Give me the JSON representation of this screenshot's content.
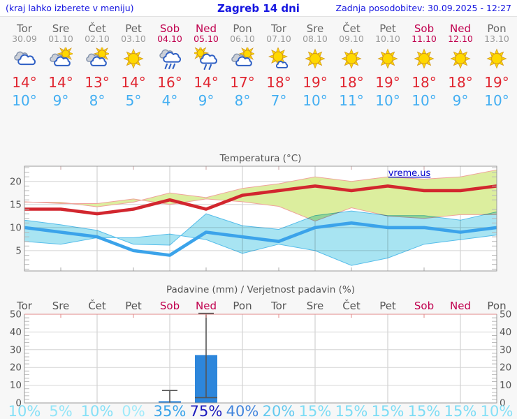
{
  "header": {
    "hint": "(kraj lahko izberete v meniju)",
    "title": "Zagreb 14 dni",
    "updated": "Zadnja posodobitev: 30.09.2025 - 12:27"
  },
  "colors": {
    "weekday": "#666666",
    "date": "#9a9a9a",
    "weekend": "#c0004e",
    "high": "#e02530",
    "low": "#42aef2",
    "bar": "#2d86db",
    "whisker": "#555555",
    "max_line": "#d2262e",
    "min_line": "#3ba3ea",
    "max_band_fill": "#dcee9e",
    "max_band_edge": "#efa39b",
    "min_band_fill": "#a8e4f2",
    "min_band_edge": "#56bdea",
    "link": "#0000cc"
  },
  "days": [
    {
      "name": "Tor",
      "date": "30.09",
      "weekend": false,
      "icon": "cloudy-icon",
      "high": "14°",
      "low": "10°",
      "prob": "10%",
      "prob_color": "#85e0f7"
    },
    {
      "name": "Sre",
      "date": "01.10",
      "weekend": false,
      "icon": "partly-cloudy-icon",
      "high": "14°",
      "low": "9°",
      "prob": "5%",
      "prob_color": "#92e5f8"
    },
    {
      "name": "Čet",
      "date": "02.10",
      "weekend": false,
      "icon": "partly-cloudy-icon",
      "high": "13°",
      "low": "8°",
      "prob": "10%",
      "prob_color": "#85e0f7"
    },
    {
      "name": "Pet",
      "date": "03.10",
      "weekend": false,
      "icon": "sunny-icon",
      "high": "14°",
      "low": "5°",
      "prob": "0%",
      "prob_color": "#9feafa"
    },
    {
      "name": "Sob",
      "date": "04.10",
      "weekend": true,
      "icon": "rain-icon",
      "high": "16°",
      "low": "4°",
      "prob": "35%",
      "prob_color": "#37a2e9"
    },
    {
      "name": "Ned",
      "date": "05.10",
      "weekend": true,
      "icon": "sun-rain-icon",
      "high": "14°",
      "low": "9°",
      "prob": "75%",
      "prob_color": "#1b1bbd"
    },
    {
      "name": "Pon",
      "date": "06.10",
      "weekend": false,
      "icon": "partly-cloudy-icon",
      "high": "17°",
      "low": "8°",
      "prob": "40%",
      "prob_color": "#4285dd"
    },
    {
      "name": "Tor",
      "date": "07.10",
      "weekend": false,
      "icon": "mostly-sunny-icon",
      "high": "18°",
      "low": "7°",
      "prob": "20%",
      "prob_color": "#63c9ef"
    },
    {
      "name": "Sre",
      "date": "08.10",
      "weekend": false,
      "icon": "sunny-icon",
      "high": "19°",
      "low": "10°",
      "prob": "15%",
      "prob_color": "#7bdcf5"
    },
    {
      "name": "Čet",
      "date": "09.10",
      "weekend": false,
      "icon": "sunny-icon",
      "high": "18°",
      "low": "11°",
      "prob": "15%",
      "prob_color": "#7bdcf5"
    },
    {
      "name": "Pet",
      "date": "10.10",
      "weekend": false,
      "icon": "sunny-icon",
      "high": "19°",
      "low": "10°",
      "prob": "15%",
      "prob_color": "#7bdcf5"
    },
    {
      "name": "Sob",
      "date": "11.10",
      "weekend": true,
      "icon": "sunny-icon",
      "high": "18°",
      "low": "10°",
      "prob": "15%",
      "prob_color": "#7bdcf5"
    },
    {
      "name": "Ned",
      "date": "12.10",
      "weekend": true,
      "icon": "sunny-icon",
      "high": "18°",
      "low": "9°",
      "prob": "15%",
      "prob_color": "#7bdcf5"
    },
    {
      "name": "Pon",
      "date": "13.10",
      "weekend": false,
      "icon": "sunny-icon",
      "high": "19°",
      "low": "10°",
      "prob": "10%",
      "prob_color": "#85e0f7"
    }
  ],
  "chart_data": [
    {
      "type": "line",
      "title": "Temperatura (°C)",
      "watermark": "vreme.us",
      "x": [
        "30.09",
        "01.10",
        "02.10",
        "03.10",
        "04.10",
        "05.10",
        "06.10",
        "07.10",
        "08.10",
        "09.10",
        "10.10",
        "11.10",
        "12.10",
        "13.10"
      ],
      "yticks": [
        5,
        10,
        15,
        20
      ],
      "ylim": [
        0.6,
        23.3
      ],
      "grid": true,
      "series": [
        {
          "name": "max_temp",
          "values": [
            14,
            14,
            13,
            14,
            16,
            14,
            17,
            18,
            19,
            18,
            19,
            18,
            18,
            19
          ]
        },
        {
          "name": "min_temp",
          "values": [
            10,
            9,
            8,
            5,
            4,
            9,
            8,
            7,
            10,
            11,
            10,
            10,
            9,
            10
          ]
        },
        {
          "name": "max_band_upper",
          "values": [
            15.5,
            15.5,
            14.5,
            15.5,
            17.5,
            16.5,
            18.5,
            19.5,
            21,
            20,
            21,
            20.5,
            21,
            22.5
          ]
        },
        {
          "name": "max_band_lower",
          "values": [
            12.8,
            12.8,
            12,
            12.5,
            14.3,
            11.4,
            14.6,
            15.6,
            16.2,
            15,
            16.2,
            15.2,
            15.2,
            15.6
          ]
        },
        {
          "name": "min_band_upper",
          "values": [
            11.6,
            10.6,
            9.4,
            6.4,
            6.2,
            13,
            10.4,
            9.6,
            12.6,
            13.6,
            12.6,
            12.6,
            11.6,
            13.4
          ]
        },
        {
          "name": "min_band_lower",
          "values": [
            8.4,
            7.4,
            6.4,
            3.4,
            1.8,
            5,
            6.4,
            4.4,
            7.4,
            8.6,
            7.8,
            7.8,
            6.4,
            7
          ]
        }
      ]
    },
    {
      "type": "bar",
      "title": "Padavine (mm) / Verjetnost padavin (%)",
      "categories": [
        "Tor",
        "Sre",
        "Čet",
        "Pet",
        "Sob",
        "Ned",
        "Pon",
        "Tor",
        "Sre",
        "Čet",
        "Pet",
        "Sob",
        "Ned",
        "Pon"
      ],
      "values_mm": [
        0,
        0,
        0,
        0,
        1,
        27,
        0,
        0,
        0,
        0,
        0,
        0,
        0,
        0
      ],
      "probabilities_pct": [
        10,
        5,
        10,
        0,
        35,
        75,
        40,
        20,
        15,
        15,
        15,
        15,
        15,
        10
      ],
      "whiskers": [
        {
          "day_index": 4,
          "low": 0,
          "high": 7
        },
        {
          "day_index": 5,
          "low": 3,
          "high": 50.5
        }
      ],
      "yticks": [
        0,
        10,
        20,
        30,
        40,
        50
      ],
      "ylim": [
        0,
        51
      ],
      "grid": true
    }
  ]
}
